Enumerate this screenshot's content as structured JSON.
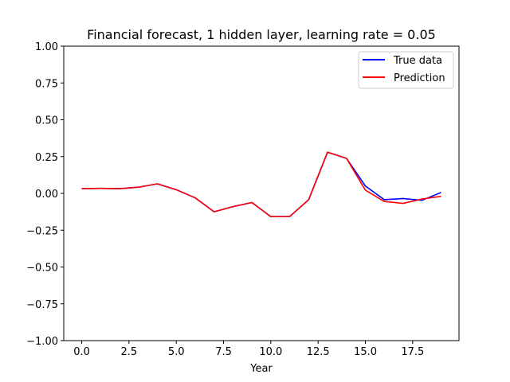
{
  "chart_data": {
    "type": "line",
    "title": "Financial forecast, 1 hidden layer, learning rate = 0.05",
    "xlabel": "Year",
    "ylabel": "",
    "xlim": [
      -0.95,
      19.95
    ],
    "ylim": [
      -1.0,
      1.0
    ],
    "xticks": [
      0.0,
      2.5,
      5.0,
      7.5,
      10.0,
      12.5,
      15.0,
      17.5
    ],
    "xtick_labels": [
      "0.0",
      "2.5",
      "5.0",
      "7.5",
      "10.0",
      "12.5",
      "15.0",
      "17.5"
    ],
    "yticks": [
      1.0,
      0.75,
      0.5,
      0.25,
      0.0,
      -0.25,
      -0.5,
      -0.75,
      -1.0
    ],
    "ytick_labels": [
      "1.00",
      "0.75",
      "0.50",
      "0.25",
      "0.00",
      "−0.25",
      "−0.50",
      "−0.75",
      "−1.00"
    ],
    "grid": false,
    "legend_position": "top-right",
    "x": [
      0,
      1,
      2,
      3,
      4,
      5,
      6,
      7,
      8,
      9,
      10,
      11,
      12,
      13,
      14,
      15,
      16,
      17,
      18,
      19
    ],
    "series": [
      {
        "name": "True data",
        "color": "#0000ff",
        "values": [
          0.032,
          0.034,
          0.032,
          0.042,
          0.065,
          0.025,
          -0.03,
          -0.125,
          -0.09,
          -0.062,
          -0.158,
          -0.157,
          -0.043,
          0.28,
          0.238,
          0.05,
          -0.043,
          -0.035,
          -0.047,
          0.006
        ]
      },
      {
        "name": "Prediction",
        "color": "#ff0000",
        "values": [
          0.032,
          0.034,
          0.032,
          0.042,
          0.065,
          0.025,
          -0.03,
          -0.125,
          -0.09,
          -0.062,
          -0.158,
          -0.157,
          -0.043,
          0.28,
          0.238,
          0.022,
          -0.055,
          -0.068,
          -0.038,
          -0.02
        ]
      }
    ]
  }
}
